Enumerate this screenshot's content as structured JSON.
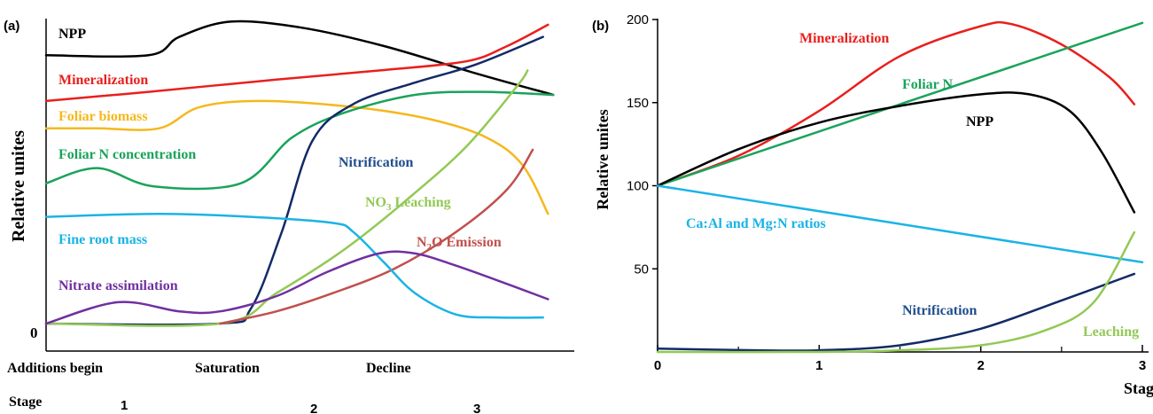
{
  "chart_data": [
    {
      "type": "line",
      "panel_label": "(a)",
      "ylabel": "Relative unites",
      "y_zero_label": "0",
      "x_stage_labels": [
        "Additions begin",
        "Saturation",
        "Decline"
      ],
      "stage_heading": "Stage",
      "stage_numbers": [
        "1",
        "2",
        "3"
      ],
      "series": [
        {
          "name": "NPP",
          "color": "#000000",
          "label_color": "#000000",
          "points": [
            [
              0,
              88
            ],
            [
              0.2,
              88
            ],
            [
              0.26,
              94
            ],
            [
              0.36,
              99
            ],
            [
              0.5,
              97
            ],
            [
              0.66,
              91
            ],
            [
              0.84,
              82
            ],
            [
              0.99,
              75
            ]
          ]
        },
        {
          "name": "Mineralization",
          "color": "#e8201d",
          "label_color": "#e8201d",
          "points": [
            [
              0,
              73
            ],
            [
              0.2,
              76
            ],
            [
              0.45,
              80
            ],
            [
              0.65,
              83
            ],
            [
              0.82,
              86
            ],
            [
              0.9,
              91
            ],
            [
              0.98,
              98
            ]
          ]
        },
        {
          "name": "Foliar biomass",
          "color": "#f5b81c",
          "label_color": "#f5b81c",
          "points": [
            [
              0,
              64
            ],
            [
              0.1,
              64
            ],
            [
              0.22,
              64
            ],
            [
              0.3,
              71
            ],
            [
              0.42,
              73
            ],
            [
              0.6,
              71
            ],
            [
              0.75,
              67
            ],
            [
              0.86,
              61
            ],
            [
              0.93,
              52
            ],
            [
              0.98,
              36
            ]
          ]
        },
        {
          "name": "Foliar N concentration",
          "color": "#1aa35b",
          "label_color": "#1aa35b",
          "points": [
            [
              0,
              46
            ],
            [
              0.1,
              51
            ],
            [
              0.21,
              45
            ],
            [
              0.38,
              46
            ],
            [
              0.48,
              61
            ],
            [
              0.58,
              69
            ],
            [
              0.72,
              75
            ],
            [
              0.85,
              76
            ],
            [
              0.99,
              75
            ]
          ]
        },
        {
          "name": "Nitrification",
          "color": "#122a66",
          "label_color": "#1f4e8c",
          "points": [
            [
              0,
              0
            ],
            [
              0.34,
              0
            ],
            [
              0.4,
              5
            ],
            [
              0.46,
              30
            ],
            [
              0.52,
              60
            ],
            [
              0.6,
              72
            ],
            [
              0.72,
              79
            ],
            [
              0.84,
              85
            ],
            [
              0.97,
              94
            ]
          ]
        },
        {
          "name": "NO3 Leaching",
          "color": "#92c955",
          "label_color": "#92c955",
          "points": [
            [
              0,
              0
            ],
            [
              0.34,
              0
            ],
            [
              0.45,
              10
            ],
            [
              0.58,
              24
            ],
            [
              0.7,
              40
            ],
            [
              0.82,
              58
            ],
            [
              0.92,
              78
            ],
            [
              0.94,
              83
            ]
          ]
        },
        {
          "name": "N2O Emission",
          "color": "#c0504d",
          "label_color": "#c0504d",
          "points": [
            [
              0.34,
              0
            ],
            [
              0.45,
              4
            ],
            [
              0.56,
              10
            ],
            [
              0.68,
              18
            ],
            [
              0.8,
              30
            ],
            [
              0.9,
              44
            ],
            [
              0.95,
              57
            ]
          ]
        },
        {
          "name": "Fine root mass",
          "color": "#1ab3e6",
          "label_color": "#1ab3e6",
          "points": [
            [
              0,
              35
            ],
            [
              0.22,
              36
            ],
            [
              0.4,
              35
            ],
            [
              0.56,
              33
            ],
            [
              0.6,
              30
            ],
            [
              0.66,
              20
            ],
            [
              0.72,
              10
            ],
            [
              0.8,
              3
            ],
            [
              0.88,
              2
            ],
            [
              0.97,
              2
            ]
          ]
        },
        {
          "name": "Nitrate assimilation",
          "color": "#7030a0",
          "label_color": "#7030a0",
          "points": [
            [
              0,
              0
            ],
            [
              0.14,
              7
            ],
            [
              0.26,
              4
            ],
            [
              0.34,
              4
            ],
            [
              0.45,
              9
            ],
            [
              0.55,
              17
            ],
            [
              0.65,
              23
            ],
            [
              0.72,
              23
            ],
            [
              0.8,
              19
            ],
            [
              0.9,
              13
            ],
            [
              0.98,
              8
            ]
          ]
        }
      ],
      "labels": {
        "npp": "NPP",
        "mineralization": "Mineralization",
        "foliar_biomass": "Foliar biomass",
        "foliar_n": "Foliar N concentration",
        "nitrification": "Nitrification",
        "no3_prefix": "NO",
        "no3_sub": "3",
        "no3_suffix": " Leaching",
        "n2o_prefix": "N",
        "n2o_sub": "2",
        "n2o_suffix": "O Emission",
        "fine_root": "Fine root mass",
        "nitrate_assim": "Nitrate assimilation"
      }
    },
    {
      "type": "line",
      "panel_label": "(b)",
      "ylabel": "Relative unites",
      "xlabel": "Stage",
      "xlim": [
        0,
        3
      ],
      "ylim": [
        0,
        200
      ],
      "xticks": [
        "0",
        "1",
        "2",
        "3"
      ],
      "yticks": [
        "50",
        "100",
        "150",
        "200"
      ],
      "series": [
        {
          "name": "Mineralization",
          "color": "#e8201d",
          "points": [
            [
              0,
              100
            ],
            [
              0.5,
              118
            ],
            [
              1,
              145
            ],
            [
              1.5,
              178
            ],
            [
              2,
              196
            ],
            [
              2.2,
              197
            ],
            [
              2.5,
              185
            ],
            [
              2.8,
              165
            ],
            [
              2.95,
              149
            ]
          ]
        },
        {
          "name": "Foliar N",
          "color": "#1aa35b",
          "points": [
            [
              0,
              100
            ],
            [
              3,
              198
            ]
          ]
        },
        {
          "name": "NPP",
          "color": "#000000",
          "points": [
            [
              0,
              100
            ],
            [
              0.5,
              122
            ],
            [
              1,
              138
            ],
            [
              1.5,
              148
            ],
            [
              2,
              155
            ],
            [
              2.3,
              155
            ],
            [
              2.55,
              145
            ],
            [
              2.75,
              120
            ],
            [
              2.95,
              84
            ]
          ]
        },
        {
          "name": "Ca:Al and Mg:N ratios",
          "color": "#1ab3e6",
          "points": [
            [
              0,
              100
            ],
            [
              3,
              54
            ]
          ]
        },
        {
          "name": "Nitrification",
          "color": "#122a66",
          "points": [
            [
              0,
              2
            ],
            [
              0.6,
              1
            ],
            [
              1,
              1
            ],
            [
              1.5,
              4
            ],
            [
              2,
              14
            ],
            [
              2.5,
              31
            ],
            [
              2.95,
              47
            ]
          ]
        },
        {
          "name": "Leaching",
          "color": "#92c955",
          "points": [
            [
              0,
              0
            ],
            [
              1,
              0
            ],
            [
              1.5,
              1
            ],
            [
              2,
              4
            ],
            [
              2.4,
              13
            ],
            [
              2.7,
              30
            ],
            [
              2.95,
              72
            ]
          ]
        }
      ],
      "labels": {
        "mineralization": "Mineralization",
        "foliar_n": "Foliar N",
        "npp": "NPP",
        "ratios": "Ca:Al and Mg:N ratios",
        "nitrification": "Nitrification",
        "leaching": "Leaching"
      }
    }
  ]
}
